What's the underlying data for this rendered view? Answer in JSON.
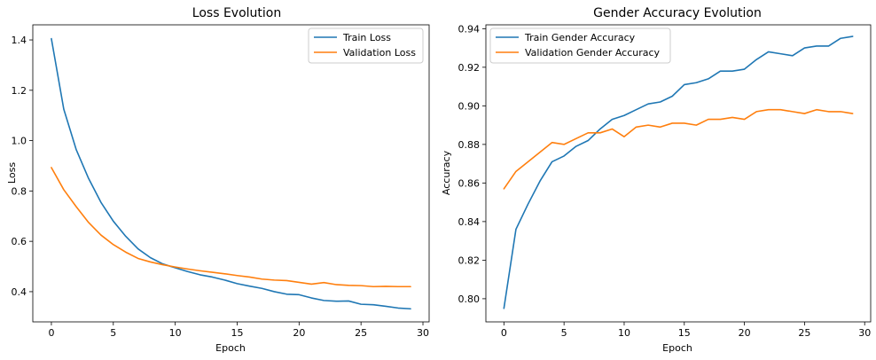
{
  "chart_data": [
    {
      "type": "line",
      "title": "Loss Evolution",
      "xlabel": "Epoch",
      "ylabel": "Loss",
      "xlim": [
        -1.5,
        30.5
      ],
      "ylim": [
        0.28,
        1.46
      ],
      "xticks": [
        0,
        5,
        10,
        15,
        20,
        25,
        30
      ],
      "yticks": [
        0.4,
        0.6,
        0.8,
        1.0,
        1.2,
        1.4
      ],
      "ytick_labels": [
        "0.4",
        "0.6",
        "0.8",
        "1.0",
        "1.2",
        "1.4"
      ],
      "grid": false,
      "legend_position": "top-right",
      "x": [
        0,
        1,
        2,
        3,
        4,
        5,
        6,
        7,
        8,
        9,
        10,
        11,
        12,
        13,
        14,
        15,
        16,
        17,
        18,
        19,
        20,
        21,
        22,
        23,
        24,
        25,
        26,
        27,
        28,
        29
      ],
      "series": [
        {
          "name": "Train Loss",
          "color": "#1f77b4",
          "values": [
            1.405,
            1.125,
            0.965,
            0.85,
            0.755,
            0.68,
            0.62,
            0.57,
            0.535,
            0.51,
            0.495,
            0.48,
            0.467,
            0.458,
            0.446,
            0.432,
            0.422,
            0.413,
            0.4,
            0.39,
            0.388,
            0.375,
            0.365,
            0.362,
            0.363,
            0.35,
            0.348,
            0.342,
            0.335,
            0.332
          ]
        },
        {
          "name": "Validation Loss",
          "color": "#ff7f0e",
          "values": [
            0.893,
            0.805,
            0.738,
            0.675,
            0.625,
            0.587,
            0.557,
            0.532,
            0.518,
            0.507,
            0.498,
            0.49,
            0.483,
            0.477,
            0.471,
            0.464,
            0.458,
            0.45,
            0.446,
            0.444,
            0.437,
            0.43,
            0.436,
            0.428,
            0.425,
            0.424,
            0.42,
            0.421,
            0.42,
            0.42
          ]
        }
      ]
    },
    {
      "type": "line",
      "title": "Gender Accuracy Evolution",
      "xlabel": "Epoch",
      "ylabel": "Accuracy",
      "xlim": [
        -1.5,
        30.5
      ],
      "ylim": [
        0.788,
        0.942
      ],
      "xticks": [
        0,
        5,
        10,
        15,
        20,
        25,
        30
      ],
      "yticks": [
        0.8,
        0.82,
        0.84,
        0.86,
        0.88,
        0.9,
        0.92,
        0.94
      ],
      "ytick_labels": [
        "0.80",
        "0.82",
        "0.84",
        "0.86",
        "0.88",
        "0.90",
        "0.92",
        "0.94"
      ],
      "grid": false,
      "legend_position": "top-left",
      "x": [
        0,
        1,
        2,
        3,
        4,
        5,
        6,
        7,
        8,
        9,
        10,
        11,
        12,
        13,
        14,
        15,
        16,
        17,
        18,
        19,
        20,
        21,
        22,
        23,
        24,
        25,
        26,
        27,
        28,
        29
      ],
      "series": [
        {
          "name": "Train Gender Accuracy",
          "color": "#1f77b4",
          "values": [
            0.795,
            0.836,
            0.849,
            0.861,
            0.871,
            0.874,
            0.879,
            0.882,
            0.888,
            0.893,
            0.895,
            0.898,
            0.901,
            0.902,
            0.905,
            0.911,
            0.912,
            0.914,
            0.918,
            0.918,
            0.919,
            0.924,
            0.928,
            0.927,
            0.926,
            0.93,
            0.931,
            0.931,
            0.935,
            0.936
          ]
        },
        {
          "name": "Validation Gender Accuracy",
          "color": "#ff7f0e",
          "values": [
            0.857,
            0.866,
            0.871,
            0.876,
            0.881,
            0.88,
            0.883,
            0.886,
            0.886,
            0.888,
            0.884,
            0.889,
            0.89,
            0.889,
            0.891,
            0.891,
            0.89,
            0.893,
            0.893,
            0.894,
            0.893,
            0.897,
            0.898,
            0.898,
            0.897,
            0.896,
            0.898,
            0.897,
            0.897,
            0.896
          ]
        }
      ]
    }
  ]
}
